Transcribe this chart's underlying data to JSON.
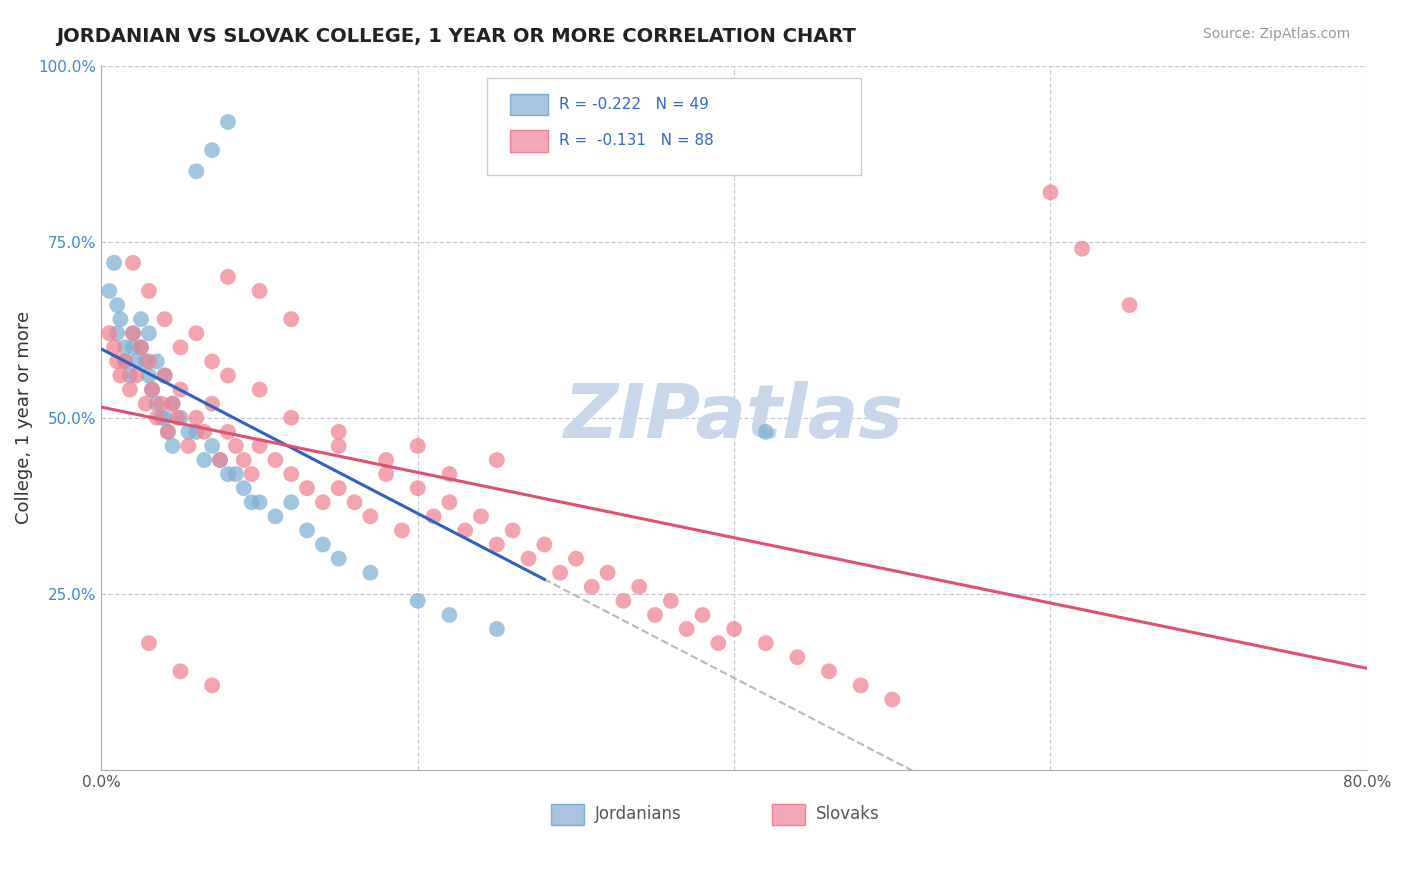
{
  "title": "JORDANIAN VS SLOVAK COLLEGE, 1 YEAR OR MORE CORRELATION CHART",
  "source_text": "Source: ZipAtlas.com",
  "ylabel": "College, 1 year or more",
  "xlim": [
    0.0,
    0.8
  ],
  "ylim": [
    0.0,
    1.0
  ],
  "jordanian_color": "#7bafd4",
  "slovak_color": "#f08090",
  "trend_jordan_color": "#3060c0",
  "trend_slovak_color": "#e05070",
  "dashed_line_color": "#b8b8b8",
  "watermark": "ZIPatlas",
  "watermark_color": "#c8d8ea",
  "background_color": "#ffffff",
  "grid_color": "#c8c8d8",
  "legend_r1": "R = -0.222   N = 49",
  "legend_r2": "R =  -0.131   N = 88",
  "legend_color1": "#7bafd4",
  "legend_color2": "#f08090",
  "legend_text_color": "#3366cc",
  "bottom_label1": "Jordanians",
  "bottom_label2": "Slovaks",
  "jordanian_x": [
    0.005,
    0.008,
    0.01,
    0.01,
    0.012,
    0.015,
    0.015,
    0.018,
    0.02,
    0.02,
    0.022,
    0.025,
    0.025,
    0.028,
    0.03,
    0.03,
    0.032,
    0.035,
    0.035,
    0.038,
    0.04,
    0.04,
    0.042,
    0.045,
    0.045,
    0.05,
    0.055,
    0.06,
    0.065,
    0.07,
    0.075,
    0.08,
    0.085,
    0.09,
    0.095,
    0.1,
    0.11,
    0.12,
    0.13,
    0.14,
    0.15,
    0.17,
    0.2,
    0.22,
    0.25,
    0.06,
    0.07,
    0.08,
    0.42
  ],
  "jordanian_y": [
    0.68,
    0.72,
    0.62,
    0.66,
    0.64,
    0.6,
    0.58,
    0.56,
    0.62,
    0.6,
    0.58,
    0.64,
    0.6,
    0.58,
    0.62,
    0.56,
    0.54,
    0.58,
    0.52,
    0.5,
    0.56,
    0.5,
    0.48,
    0.52,
    0.46,
    0.5,
    0.48,
    0.48,
    0.44,
    0.46,
    0.44,
    0.42,
    0.42,
    0.4,
    0.38,
    0.38,
    0.36,
    0.38,
    0.34,
    0.32,
    0.3,
    0.28,
    0.24,
    0.22,
    0.2,
    0.85,
    0.88,
    0.92,
    0.48
  ],
  "slovak_x": [
    0.005,
    0.008,
    0.01,
    0.012,
    0.015,
    0.018,
    0.02,
    0.022,
    0.025,
    0.028,
    0.03,
    0.032,
    0.035,
    0.038,
    0.04,
    0.042,
    0.045,
    0.048,
    0.05,
    0.055,
    0.06,
    0.065,
    0.07,
    0.075,
    0.08,
    0.085,
    0.09,
    0.095,
    0.1,
    0.11,
    0.12,
    0.13,
    0.14,
    0.15,
    0.16,
    0.17,
    0.18,
    0.19,
    0.2,
    0.21,
    0.22,
    0.23,
    0.24,
    0.25,
    0.26,
    0.27,
    0.28,
    0.29,
    0.3,
    0.31,
    0.32,
    0.33,
    0.34,
    0.35,
    0.36,
    0.37,
    0.38,
    0.39,
    0.4,
    0.42,
    0.44,
    0.46,
    0.48,
    0.5,
    0.03,
    0.04,
    0.05,
    0.06,
    0.07,
    0.08,
    0.1,
    0.12,
    0.15,
    0.18,
    0.22,
    0.6,
    0.62,
    0.65,
    0.15,
    0.2,
    0.25,
    0.08,
    0.1,
    0.12,
    0.05,
    0.07,
    0.03,
    0.02
  ],
  "slovak_y": [
    0.62,
    0.6,
    0.58,
    0.56,
    0.58,
    0.54,
    0.62,
    0.56,
    0.6,
    0.52,
    0.58,
    0.54,
    0.5,
    0.52,
    0.56,
    0.48,
    0.52,
    0.5,
    0.54,
    0.46,
    0.5,
    0.48,
    0.52,
    0.44,
    0.48,
    0.46,
    0.44,
    0.42,
    0.46,
    0.44,
    0.42,
    0.4,
    0.38,
    0.4,
    0.38,
    0.36,
    0.42,
    0.34,
    0.4,
    0.36,
    0.38,
    0.34,
    0.36,
    0.32,
    0.34,
    0.3,
    0.32,
    0.28,
    0.3,
    0.26,
    0.28,
    0.24,
    0.26,
    0.22,
    0.24,
    0.2,
    0.22,
    0.18,
    0.2,
    0.18,
    0.16,
    0.14,
    0.12,
    0.1,
    0.68,
    0.64,
    0.6,
    0.62,
    0.58,
    0.56,
    0.54,
    0.5,
    0.46,
    0.44,
    0.42,
    0.82,
    0.74,
    0.66,
    0.48,
    0.46,
    0.44,
    0.7,
    0.68,
    0.64,
    0.14,
    0.12,
    0.18,
    0.72
  ]
}
